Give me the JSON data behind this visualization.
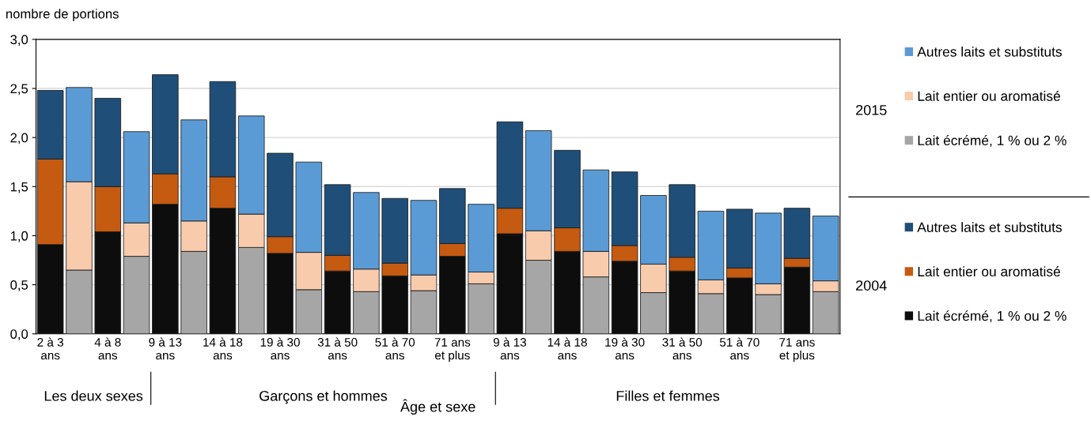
{
  "chart_data": {
    "type": "bar",
    "stacked": true,
    "ylabel": "nombre de portions",
    "xlabel": "Âge et sexe",
    "categories": [
      "2 à 3\nans",
      null,
      "4 à 8\nans",
      null,
      "9 à 13\nans",
      null,
      "14 à 18\nans",
      null,
      "19 à 30\nans",
      null,
      "31 à 50\nans",
      null,
      "51 à 70\nans",
      null,
      "71 ans\net plus",
      null,
      "9 à 13\nans",
      null,
      "14 à 18\nans",
      null,
      "19 à 30\nans",
      null,
      "31 à 50\nans",
      null,
      "51 à 70\nans",
      null,
      "71 ans\net plus",
      null
    ],
    "series": [
      {
        "name": "Lait écrémé, 1 % ou 2 %",
        "color": "#0d0d0d",
        "values": [
          0.91,
          null,
          1.04,
          null,
          1.32,
          null,
          1.28,
          null,
          0.82,
          null,
          0.64,
          null,
          0.59,
          null,
          0.79,
          null,
          1.02,
          null,
          0.84,
          null,
          0.74,
          null,
          0.64,
          null,
          0.57,
          null,
          0.68,
          null
        ]
      },
      {
        "name": "Lait entier ou aromatisé",
        "color": "#c55a11",
        "values": [
          0.87,
          null,
          0.46,
          null,
          0.31,
          null,
          0.32,
          null,
          0.17,
          null,
          0.16,
          null,
          0.13,
          null,
          0.13,
          null,
          0.26,
          null,
          0.24,
          null,
          0.16,
          null,
          0.14,
          null,
          0.1,
          null,
          0.09,
          null
        ]
      },
      {
        "name": "Autres laits et substituts",
        "color": "#1f4e79",
        "values": [
          0.7,
          null,
          0.9,
          null,
          1.01,
          null,
          0.97,
          null,
          0.85,
          null,
          0.72,
          null,
          0.66,
          null,
          0.56,
          null,
          0.88,
          null,
          0.79,
          null,
          0.75,
          null,
          0.74,
          null,
          0.6,
          null,
          0.51,
          null
        ]
      },
      {
        "name": "Lait écrémé, 1 % ou 2 %",
        "color": "#a6a6a6",
        "values": [
          null,
          0.65,
          null,
          0.79,
          null,
          0.84,
          null,
          0.88,
          null,
          0.45,
          null,
          0.43,
          null,
          0.44,
          null,
          0.51,
          null,
          0.75,
          null,
          0.58,
          null,
          0.42,
          null,
          0.41,
          null,
          0.4,
          null,
          0.43
        ]
      },
      {
        "name": "Lait entier ou aromatisé",
        "color": "#f8cbad",
        "values": [
          null,
          0.9,
          null,
          0.34,
          null,
          0.31,
          null,
          0.34,
          null,
          0.38,
          null,
          0.23,
          null,
          0.16,
          null,
          0.12,
          null,
          0.3,
          null,
          0.26,
          null,
          0.29,
          null,
          0.14,
          null,
          0.11,
          null,
          0.11
        ]
      },
      {
        "name": "Autres laits et substituts",
        "color": "#5b9bd5",
        "values": [
          null,
          0.96,
          null,
          0.93,
          null,
          1.03,
          null,
          1.0,
          null,
          0.92,
          null,
          0.78,
          null,
          0.76,
          null,
          0.69,
          null,
          1.02,
          null,
          0.83,
          null,
          0.7,
          null,
          0.7,
          null,
          0.72,
          null,
          0.66
        ]
      }
    ],
    "ylim": [
      0,
      3
    ],
    "yticks": [
      {
        "value": 0,
        "label": "0,0"
      },
      {
        "value": 0.5,
        "label": "0,5"
      },
      {
        "value": 1,
        "label": "1,0"
      },
      {
        "value": 1.5,
        "label": "1,5"
      },
      {
        "value": 2,
        "label": "2,0"
      },
      {
        "value": 2.5,
        "label": "2,5"
      },
      {
        "value": 3,
        "label": "3,0"
      }
    ],
    "grid": "y",
    "legend": "right",
    "annotations": [
      "Les deux sexes",
      "Garçons et hommes",
      "Filles et femmes",
      "2004",
      "2015"
    ]
  }
}
